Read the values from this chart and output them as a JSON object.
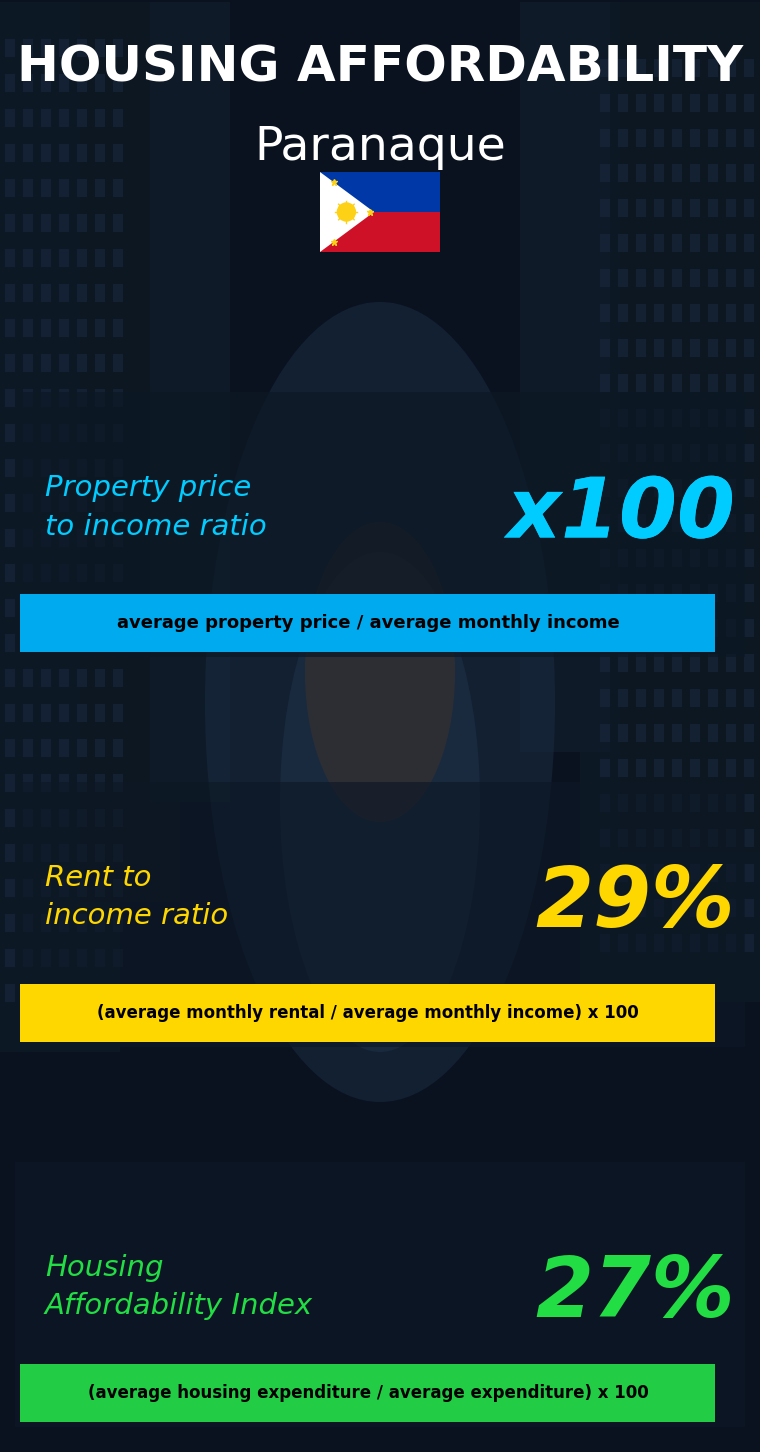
{
  "title_line1": "HOUSING AFFORDABILITY",
  "title_line2": "Paranaque",
  "section1_label": "Property price\nto income ratio",
  "section1_value": "x100",
  "section1_label_color": "#00ccff",
  "section1_value_color": "#00ccff",
  "section1_formula": "average property price / average monthly income",
  "section1_formula_bg": "#00aaee",
  "section2_label": "Rent to\nincome ratio",
  "section2_value": "29%",
  "section2_label_color": "#ffd700",
  "section2_value_color": "#ffd700",
  "section2_formula": "(average monthly rental / average monthly income) x 100",
  "section2_formula_bg": "#ffd700",
  "section3_label": "Housing\nAffordability Index",
  "section3_value": "27%",
  "section3_label_color": "#22dd44",
  "section3_value_color": "#22dd44",
  "section3_formula": "(average housing expenditure / average expenditure) x 100",
  "section3_formula_bg": "#22cc44",
  "bg_color": "#080e18",
  "title_color": "#ffffff",
  "subtitle_color": "#ffffff",
  "formula_text_color": "#000000",
  "panel1_bg": "#1a2535",
  "panel2_bg": "#1a2535",
  "panel3_bg": "#1a2535"
}
